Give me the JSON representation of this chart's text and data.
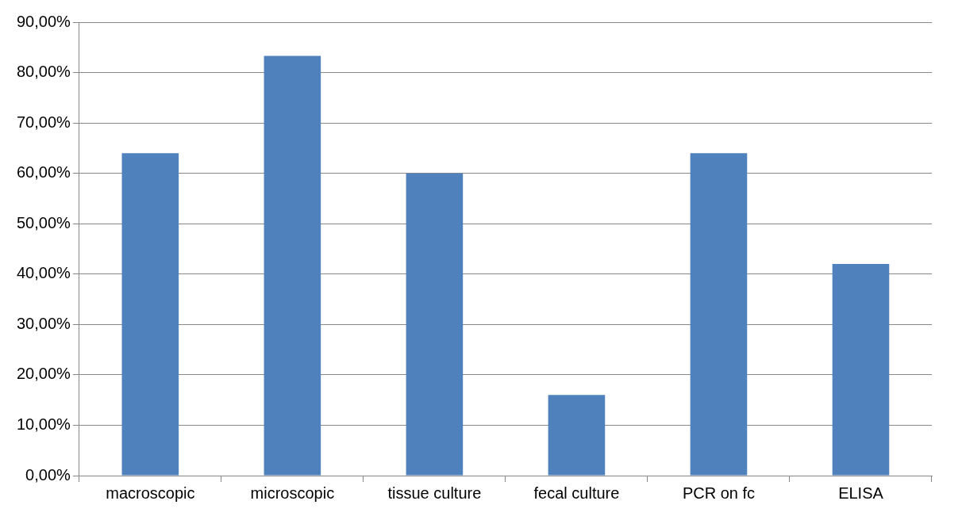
{
  "chart_data": {
    "type": "bar",
    "categories": [
      "macroscopic",
      "microscopic",
      "tissue culture",
      "fecal culture",
      "PCR on fc",
      "ELISA"
    ],
    "values": [
      64,
      83.3,
      60,
      16,
      64,
      42
    ],
    "color": "#4f81bd",
    "ylim": [
      0,
      90
    ],
    "yticks": [
      {
        "value": 0,
        "label": "0,00%"
      },
      {
        "value": 10,
        "label": "10,00%"
      },
      {
        "value": 20,
        "label": "20,00%"
      },
      {
        "value": 30,
        "label": "30,00%"
      },
      {
        "value": 40,
        "label": "40,00%"
      },
      {
        "value": 50,
        "label": "50,00%"
      },
      {
        "value": 60,
        "label": "60,00%"
      },
      {
        "value": 70,
        "label": "70,00%"
      },
      {
        "value": 80,
        "label": "80,00%"
      },
      {
        "value": 90,
        "label": "90,00%"
      }
    ],
    "grid": "y",
    "legend": false
  }
}
